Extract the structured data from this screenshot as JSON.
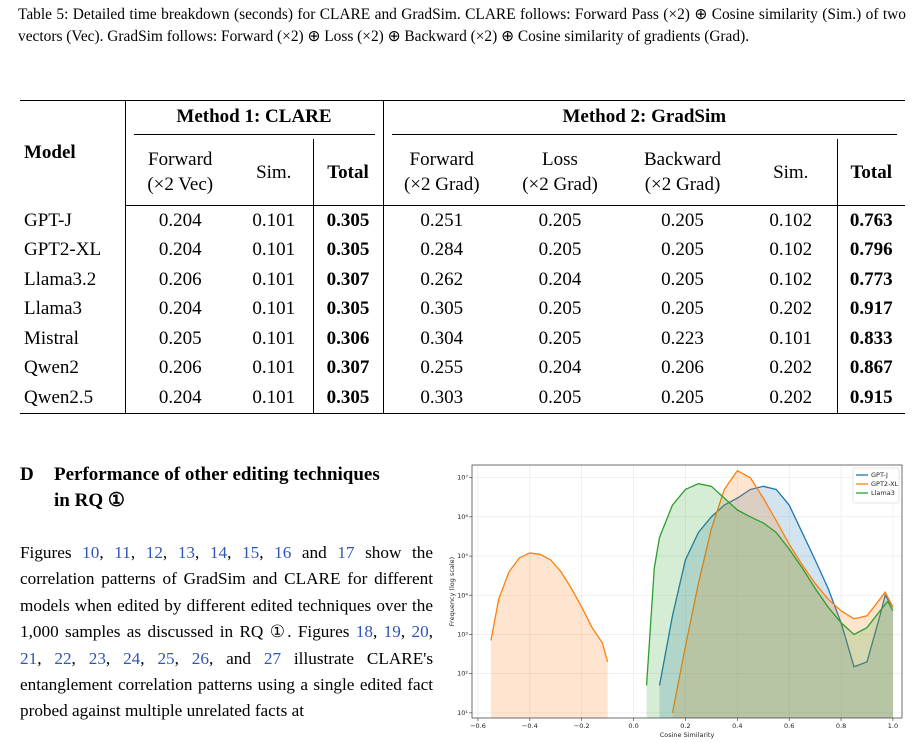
{
  "caption": "Table 5: Detailed time breakdown (seconds) for CLARE and GradSim. CLARE follows: Forward Pass (×2) ⊕ Cosine similarity (Sim.) of two vectors (Vec). GradSim follows: Forward (×2) ⊕ Loss (×2) ⊕ Backward (×2) ⊕ Cosine similarity of gradients (Grad).",
  "table": {
    "header": [
      "Model",
      "Method 1: CLARE",
      "Method 2: GradSim"
    ],
    "subheader": [
      "Forward\n(×2 Vec)",
      "Sim.",
      "Total",
      "Forward\n(×2 Grad)",
      "Loss\n(×2 Grad)",
      "Backward\n(×2 Grad)",
      "Sim.",
      "Total"
    ],
    "rows": [
      [
        "GPT-J",
        0.204,
        0.101,
        0.305,
        0.251,
        0.205,
        0.205,
        0.102,
        0.763
      ],
      [
        "GPT2-XL",
        0.204,
        0.101,
        0.305,
        0.284,
        0.205,
        0.205,
        0.102,
        0.796
      ],
      [
        "Llama3.2",
        0.206,
        0.101,
        0.307,
        0.262,
        0.204,
        0.205,
        0.102,
        0.773
      ],
      [
        "Llama3",
        0.204,
        0.101,
        0.305,
        0.305,
        0.205,
        0.205,
        0.202,
        0.917
      ],
      [
        "Mistral",
        0.205,
        0.101,
        0.306,
        0.304,
        0.205,
        0.223,
        0.101,
        0.833
      ],
      [
        "Qwen2",
        0.206,
        0.101,
        0.307,
        0.255,
        0.204,
        0.206,
        0.202,
        0.867
      ],
      [
        "Qwen2.5",
        0.204,
        0.101,
        0.305,
        0.303,
        0.205,
        0.205,
        0.202,
        0.915
      ]
    ]
  },
  "section": {
    "number": "D",
    "title": "Performance of other editing techniques in RQ ①"
  },
  "paragraph": [
    {
      "text": "Figures "
    },
    {
      "text": "10",
      "ref": true
    },
    {
      "text": ", "
    },
    {
      "text": "11",
      "ref": true
    },
    {
      "text": ", "
    },
    {
      "text": "12",
      "ref": true
    },
    {
      "text": ", "
    },
    {
      "text": "13",
      "ref": true
    },
    {
      "text": ", "
    },
    {
      "text": "14",
      "ref": true
    },
    {
      "text": ", "
    },
    {
      "text": "15",
      "ref": true
    },
    {
      "text": ", "
    },
    {
      "text": "16",
      "ref": true
    },
    {
      "text": " and "
    },
    {
      "text": "17",
      "ref": true
    },
    {
      "text": " show the correlation patterns of GradSim and CLARE for different models when edited by different edited techniques over the 1,000 samples as discussed in RQ ①. Figures "
    },
    {
      "text": "18",
      "ref": true
    },
    {
      "text": ", "
    },
    {
      "text": "19",
      "ref": true
    },
    {
      "text": ", "
    },
    {
      "text": "20",
      "ref": true
    },
    {
      "text": ", "
    },
    {
      "text": "21",
      "ref": true
    },
    {
      "text": ", "
    },
    {
      "text": "22",
      "ref": true
    },
    {
      "text": ", "
    },
    {
      "text": "23",
      "ref": true
    },
    {
      "text": ", "
    },
    {
      "text": "24",
      "ref": true
    },
    {
      "text": ", "
    },
    {
      "text": "25",
      "ref": true
    },
    {
      "text": ", "
    },
    {
      "text": "26",
      "ref": true
    },
    {
      "text": ", and "
    },
    {
      "text": "27",
      "ref": true
    },
    {
      "text": " illustrate CLARE's entanglement correlation patterns using a single edited fact probed against multiple unrelated facts at"
    }
  ],
  "chart_data": {
    "type": "area",
    "xlabel": "Cosine Similarity",
    "ylabel": "Frequency (log scale)",
    "yscale": "log",
    "grid": true,
    "legend": "upper right",
    "xlim": [
      -0.623,
      1.035
    ],
    "ylim": [
      7.4,
      21000000
    ],
    "xticks": [
      {
        "value": -0.6,
        "label": "−0.6"
      },
      {
        "value": -0.4,
        "label": "−0.4"
      },
      {
        "value": -0.2,
        "label": "−0.2"
      },
      {
        "value": 0,
        "label": "0.0"
      },
      0.2,
      0.4,
      0.6,
      0.8,
      {
        "value": 1,
        "label": "1.0"
      }
    ],
    "yticks": [
      {
        "value": 10,
        "label": "10¹"
      },
      {
        "value": 100,
        "label": "10²"
      },
      {
        "value": 1000,
        "label": "10³"
      },
      {
        "value": 10000,
        "label": "10⁴"
      },
      {
        "value": 100000,
        "label": "10⁵"
      },
      {
        "value": 1000000,
        "label": "10⁶"
      },
      {
        "value": 10000000,
        "label": "10⁷"
      }
    ],
    "series": [
      {
        "name": "GPT-J",
        "color": "#1f77b4",
        "x": [
          0.1,
          0.15,
          0.2,
          0.25,
          0.3,
          0.35,
          0.4,
          0.45,
          0.5,
          0.55,
          0.6,
          0.65,
          0.7,
          0.75,
          0.8,
          0.85,
          0.9,
          0.95,
          0.97,
          1.0
        ],
        "values": [
          50,
          3000,
          80000,
          400000,
          1000000,
          2000000,
          3000000,
          5000000,
          6000000,
          5000000,
          2000000,
          400000,
          80000,
          15000,
          2000,
          150,
          200,
          3000,
          10000,
          5000
        ]
      },
      {
        "name": "GPT2-XL",
        "color": "#ff7f0e",
        "x": [
          -0.55,
          -0.52,
          -0.48,
          -0.44,
          -0.4,
          -0.36,
          -0.32,
          -0.28,
          -0.24,
          -0.2,
          -0.16,
          -0.12,
          -0.1,
          0.0,
          0.15,
          0.2,
          0.25,
          0.3,
          0.35,
          0.4,
          0.45,
          0.5,
          0.55,
          0.6,
          0.65,
          0.7,
          0.75,
          0.8,
          0.85,
          0.9,
          0.95,
          0.97,
          1.0
        ],
        "values": [
          700,
          8000,
          40000,
          90000,
          120000,
          110000,
          80000,
          40000,
          15000,
          5000,
          1500,
          600,
          200,
          null,
          10,
          500,
          20000,
          500000,
          5000000,
          15000000,
          10000000,
          3000000,
          800000,
          200000,
          60000,
          20000,
          8000,
          4000,
          2500,
          3000,
          8000,
          12000,
          5000
        ]
      },
      {
        "name": "Llama3",
        "color": "#2ca02c",
        "x": [
          0.05,
          0.08,
          0.1,
          0.15,
          0.2,
          0.25,
          0.3,
          0.35,
          0.4,
          0.45,
          0.5,
          0.55,
          0.6,
          0.65,
          0.7,
          0.75,
          0.8,
          0.85,
          0.9,
          0.95,
          0.98,
          1.0
        ],
        "values": [
          50,
          50000,
          300000,
          2000000,
          5000000,
          7000000,
          6000000,
          3000000,
          1500000,
          1000000,
          700000,
          400000,
          150000,
          50000,
          15000,
          5000,
          2000,
          1000,
          1500,
          4000,
          7000,
          4000
        ]
      }
    ]
  }
}
